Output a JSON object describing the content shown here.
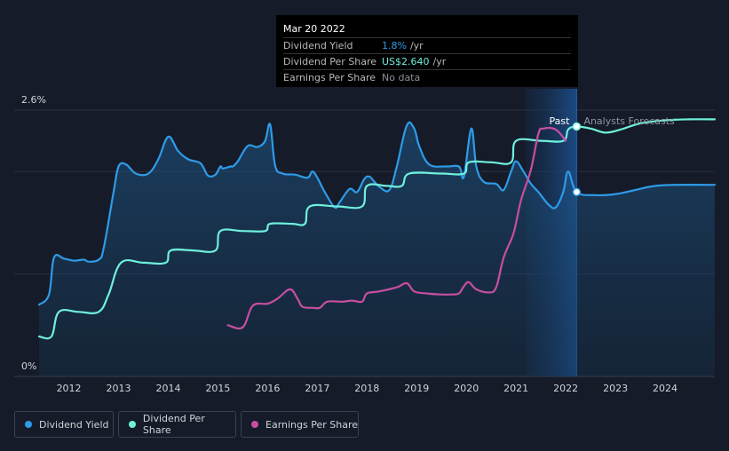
{
  "tooltip": {
    "date": "Mar 20 2022",
    "rows": [
      {
        "label": "Dividend Yield",
        "value": "1.8%",
        "unit": "/yr",
        "color": "#2e9be8"
      },
      {
        "label": "Dividend Per Share",
        "value": "US$2.640",
        "unit": "/yr",
        "color": "#6ff0dc"
      },
      {
        "label": "Earnings Per Share",
        "value": "No data",
        "unit": "",
        "color": "#8a8f99"
      }
    ]
  },
  "annotations": {
    "past": "Past",
    "forecast": "Analysts Forecasts"
  },
  "legend": [
    {
      "label": "Dividend Yield",
      "color": "#2e9be8"
    },
    {
      "label": "Dividend Per Share",
      "color": "#6ff0dc"
    },
    {
      "label": "Earnings Per Share",
      "color": "#c84ea0"
    }
  ],
  "chart_data": {
    "type": "line",
    "y_tick_labels": [
      "2.6%",
      "0%"
    ],
    "ylim": [
      0,
      2.6
    ],
    "xlim": [
      2011.4,
      2025.0
    ],
    "x_tick_labels": [
      "2012",
      "2013",
      "2014",
      "2015",
      "2016",
      "2017",
      "2018",
      "2019",
      "2020",
      "2021",
      "2022",
      "2023",
      "2024"
    ],
    "x_ticks": [
      2012,
      2013,
      2014,
      2015,
      2016,
      2017,
      2018,
      2019,
      2020,
      2021,
      2022,
      2023,
      2024
    ],
    "forecast_start": 2022.22,
    "grid": true,
    "series": [
      {
        "name": "Dividend Yield",
        "color": "#2e9be8",
        "fill": true,
        "points": [
          [
            2011.4,
            0.7
          ],
          [
            2011.6,
            0.8
          ],
          [
            2011.7,
            1.16
          ],
          [
            2011.9,
            1.15
          ],
          [
            2012.1,
            1.13
          ],
          [
            2012.3,
            1.14
          ],
          [
            2012.4,
            1.12
          ],
          [
            2012.6,
            1.14
          ],
          [
            2012.7,
            1.25
          ],
          [
            2012.9,
            1.8
          ],
          [
            2013.0,
            2.05
          ],
          [
            2013.15,
            2.07
          ],
          [
            2013.35,
            1.98
          ],
          [
            2013.6,
            1.98
          ],
          [
            2013.8,
            2.12
          ],
          [
            2014.0,
            2.34
          ],
          [
            2014.2,
            2.2
          ],
          [
            2014.4,
            2.12
          ],
          [
            2014.65,
            2.08
          ],
          [
            2014.8,
            1.96
          ],
          [
            2014.95,
            1.97
          ],
          [
            2015.05,
            2.05
          ],
          [
            2015.1,
            2.03
          ],
          [
            2015.25,
            2.05
          ],
          [
            2015.3,
            2.05
          ],
          [
            2015.4,
            2.1
          ],
          [
            2015.6,
            2.25
          ],
          [
            2015.8,
            2.24
          ],
          [
            2015.95,
            2.3
          ],
          [
            2016.05,
            2.46
          ],
          [
            2016.15,
            2.06
          ],
          [
            2016.3,
            1.98
          ],
          [
            2016.55,
            1.97
          ],
          [
            2016.8,
            1.94
          ],
          [
            2016.9,
            2.0
          ],
          [
            2017.0,
            1.94
          ],
          [
            2017.15,
            1.8
          ],
          [
            2017.35,
            1.65
          ],
          [
            2017.45,
            1.7
          ],
          [
            2017.65,
            1.83
          ],
          [
            2017.8,
            1.8
          ],
          [
            2017.95,
            1.93
          ],
          [
            2018.05,
            1.95
          ],
          [
            2018.15,
            1.9
          ],
          [
            2018.25,
            1.85
          ],
          [
            2018.45,
            1.82
          ],
          [
            2018.6,
            2.05
          ],
          [
            2018.8,
            2.45
          ],
          [
            2018.95,
            2.42
          ],
          [
            2019.05,
            2.25
          ],
          [
            2019.25,
            2.07
          ],
          [
            2019.6,
            2.05
          ],
          [
            2019.85,
            2.05
          ],
          [
            2019.95,
            1.95
          ],
          [
            2020.1,
            2.42
          ],
          [
            2020.2,
            2.05
          ],
          [
            2020.35,
            1.9
          ],
          [
            2020.6,
            1.88
          ],
          [
            2020.75,
            1.82
          ],
          [
            2020.9,
            2.0
          ],
          [
            2021.0,
            2.1
          ],
          [
            2021.15,
            2.0
          ],
          [
            2021.3,
            1.88
          ],
          [
            2021.45,
            1.8
          ],
          [
            2021.65,
            1.68
          ],
          [
            2021.8,
            1.65
          ],
          [
            2021.95,
            1.8
          ],
          [
            2022.05,
            2.0
          ],
          [
            2022.22,
            1.8
          ],
          [
            2022.6,
            1.77
          ],
          [
            2023.0,
            1.78
          ],
          [
            2023.4,
            1.82
          ],
          [
            2023.8,
            1.86
          ],
          [
            2024.3,
            1.87
          ],
          [
            2025.0,
            1.87
          ]
        ]
      },
      {
        "name": "Dividend Per Share",
        "color": "#6ff0dc",
        "points": [
          [
            2011.4,
            0.39
          ],
          [
            2011.65,
            0.39
          ],
          [
            2011.8,
            0.63
          ],
          [
            2012.2,
            0.63
          ],
          [
            2012.6,
            0.63
          ],
          [
            2012.8,
            0.8
          ],
          [
            2013.05,
            1.11
          ],
          [
            2013.5,
            1.11
          ],
          [
            2013.95,
            1.11
          ],
          [
            2014.05,
            1.23
          ],
          [
            2014.5,
            1.23
          ],
          [
            2014.95,
            1.23
          ],
          [
            2015.05,
            1.42
          ],
          [
            2015.5,
            1.42
          ],
          [
            2015.95,
            1.42
          ],
          [
            2016.05,
            1.49
          ],
          [
            2016.5,
            1.49
          ],
          [
            2016.75,
            1.49
          ],
          [
            2016.85,
            1.66
          ],
          [
            2017.4,
            1.66
          ],
          [
            2017.9,
            1.66
          ],
          [
            2018.0,
            1.86
          ],
          [
            2018.4,
            1.86
          ],
          [
            2018.7,
            1.86
          ],
          [
            2018.85,
            1.98
          ],
          [
            2019.5,
            1.98
          ],
          [
            2019.95,
            1.98
          ],
          [
            2020.05,
            2.09
          ],
          [
            2020.5,
            2.09
          ],
          [
            2020.9,
            2.09
          ],
          [
            2021.0,
            2.3
          ],
          [
            2021.5,
            2.3
          ],
          [
            2021.95,
            2.3
          ],
          [
            2022.05,
            2.41
          ],
          [
            2022.22,
            2.44
          ],
          [
            2022.5,
            2.42
          ],
          [
            2022.8,
            2.38
          ],
          [
            2023.1,
            2.41
          ],
          [
            2023.5,
            2.47
          ],
          [
            2024.0,
            2.5
          ],
          [
            2024.5,
            2.51
          ],
          [
            2025.0,
            2.51
          ]
        ]
      },
      {
        "name": "Earnings Per Share",
        "color": "#c84ea0",
        "points": [
          [
            2015.2,
            0.5
          ],
          [
            2015.5,
            0.48
          ],
          [
            2015.7,
            0.69
          ],
          [
            2016.0,
            0.71
          ],
          [
            2016.2,
            0.76
          ],
          [
            2016.45,
            0.85
          ],
          [
            2016.6,
            0.76
          ],
          [
            2016.7,
            0.68
          ],
          [
            2016.9,
            0.67
          ],
          [
            2017.05,
            0.67
          ],
          [
            2017.2,
            0.73
          ],
          [
            2017.5,
            0.73
          ],
          [
            2017.7,
            0.74
          ],
          [
            2017.9,
            0.73
          ],
          [
            2018.0,
            0.81
          ],
          [
            2018.25,
            0.83
          ],
          [
            2018.6,
            0.87
          ],
          [
            2018.8,
            0.91
          ],
          [
            2018.95,
            0.83
          ],
          [
            2019.2,
            0.81
          ],
          [
            2019.5,
            0.8
          ],
          [
            2019.7,
            0.8
          ],
          [
            2019.85,
            0.81
          ],
          [
            2019.95,
            0.88
          ],
          [
            2020.05,
            0.92
          ],
          [
            2020.2,
            0.85
          ],
          [
            2020.45,
            0.82
          ],
          [
            2020.6,
            0.87
          ],
          [
            2020.75,
            1.16
          ],
          [
            2020.95,
            1.4
          ],
          [
            2021.1,
            1.72
          ],
          [
            2021.3,
            2.02
          ],
          [
            2021.45,
            2.37
          ],
          [
            2021.55,
            2.42
          ],
          [
            2021.8,
            2.41
          ],
          [
            2022.0,
            2.3
          ]
        ]
      }
    ]
  }
}
